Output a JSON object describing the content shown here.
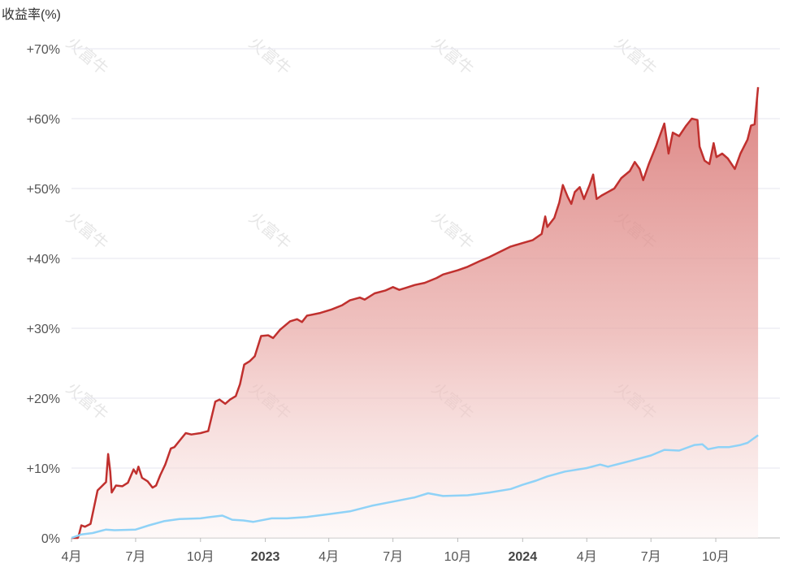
{
  "chart_data": {
    "type": "area",
    "ylabel": "收益率(%)",
    "ylim": [
      0,
      70
    ],
    "yticks": [
      {
        "value": 0,
        "label": "0%"
      },
      {
        "value": 10,
        "label": "+10%"
      },
      {
        "value": 20,
        "label": "+20%"
      },
      {
        "value": 30,
        "label": "+30%"
      },
      {
        "value": 40,
        "label": "+40%"
      },
      {
        "value": 50,
        "label": "+50%"
      },
      {
        "value": 60,
        "label": "+60%"
      },
      {
        "value": 70,
        "label": "+70%"
      }
    ],
    "xlim": [
      "2022-04-01",
      "2024-12-31"
    ],
    "xticks": [
      {
        "date": "2022-04-01",
        "label": "4月",
        "bold": false
      },
      {
        "date": "2022-07-01",
        "label": "7月",
        "bold": false
      },
      {
        "date": "2022-10-01",
        "label": "10月",
        "bold": false
      },
      {
        "date": "2023-01-01",
        "label": "2023",
        "bold": true
      },
      {
        "date": "2023-04-01",
        "label": "4月",
        "bold": false
      },
      {
        "date": "2023-07-01",
        "label": "7月",
        "bold": false
      },
      {
        "date": "2023-10-01",
        "label": "10月",
        "bold": false
      },
      {
        "date": "2024-01-01",
        "label": "2024",
        "bold": true
      },
      {
        "date": "2024-04-01",
        "label": "4月",
        "bold": false
      },
      {
        "date": "2024-07-01",
        "label": "7月",
        "bold": false
      },
      {
        "date": "2024-10-01",
        "label": "10月",
        "bold": false
      }
    ],
    "grid": true,
    "series": [
      {
        "color": "#c0302e",
        "fill": "gradient",
        "points": [
          [
            "2022-04-01",
            0
          ],
          [
            "2022-04-10",
            0
          ],
          [
            "2022-04-12",
            0.6
          ],
          [
            "2022-04-15",
            1.8
          ],
          [
            "2022-04-20",
            1.6
          ],
          [
            "2022-04-28",
            2.0
          ],
          [
            "2022-05-08",
            6.8
          ],
          [
            "2022-05-15",
            7.5
          ],
          [
            "2022-05-20",
            8.0
          ],
          [
            "2022-05-23",
            12.0
          ],
          [
            "2022-05-26",
            9.5
          ],
          [
            "2022-05-28",
            6.5
          ],
          [
            "2022-06-03",
            7.5
          ],
          [
            "2022-06-12",
            7.4
          ],
          [
            "2022-06-20",
            7.9
          ],
          [
            "2022-06-28",
            9.8
          ],
          [
            "2022-07-02",
            9.2
          ],
          [
            "2022-07-05",
            10.2
          ],
          [
            "2022-07-10",
            8.6
          ],
          [
            "2022-07-18",
            8.1
          ],
          [
            "2022-07-25",
            7.2
          ],
          [
            "2022-07-30",
            7.5
          ],
          [
            "2022-08-05",
            9.0
          ],
          [
            "2022-08-12",
            10.5
          ],
          [
            "2022-08-20",
            12.8
          ],
          [
            "2022-08-25",
            13.0
          ],
          [
            "2022-09-02",
            14.0
          ],
          [
            "2022-09-10",
            15.0
          ],
          [
            "2022-09-18",
            14.8
          ],
          [
            "2022-10-01",
            15.0
          ],
          [
            "2022-10-12",
            15.3
          ],
          [
            "2022-10-22",
            19.5
          ],
          [
            "2022-10-28",
            19.8
          ],
          [
            "2022-11-05",
            19.2
          ],
          [
            "2022-11-12",
            19.8
          ],
          [
            "2022-11-20",
            20.3
          ],
          [
            "2022-11-26",
            22.0
          ],
          [
            "2022-12-02",
            24.8
          ],
          [
            "2022-12-10",
            25.3
          ],
          [
            "2022-12-17",
            26.0
          ],
          [
            "2022-12-26",
            28.9
          ],
          [
            "2023-01-05",
            29.0
          ],
          [
            "2023-01-12",
            28.6
          ],
          [
            "2023-01-22",
            29.8
          ],
          [
            "2023-02-05",
            31.0
          ],
          [
            "2023-02-15",
            31.3
          ],
          [
            "2023-02-22",
            30.9
          ],
          [
            "2023-03-01",
            31.8
          ],
          [
            "2023-03-20",
            32.2
          ],
          [
            "2023-04-05",
            32.7
          ],
          [
            "2023-04-20",
            33.3
          ],
          [
            "2023-05-01",
            34.0
          ],
          [
            "2023-05-15",
            34.4
          ],
          [
            "2023-05-22",
            34.1
          ],
          [
            "2023-06-05",
            35.0
          ],
          [
            "2023-06-20",
            35.4
          ],
          [
            "2023-07-01",
            35.9
          ],
          [
            "2023-07-10",
            35.5
          ],
          [
            "2023-07-20",
            35.8
          ],
          [
            "2023-08-01",
            36.2
          ],
          [
            "2023-08-15",
            36.5
          ],
          [
            "2023-09-01",
            37.2
          ],
          [
            "2023-09-10",
            37.7
          ],
          [
            "2023-10-01",
            38.3
          ],
          [
            "2023-10-15",
            38.8
          ],
          [
            "2023-11-01",
            39.6
          ],
          [
            "2023-11-15",
            40.2
          ],
          [
            "2023-12-01",
            41.0
          ],
          [
            "2023-12-15",
            41.7
          ],
          [
            "2024-01-01",
            42.2
          ],
          [
            "2024-01-15",
            42.6
          ],
          [
            "2024-01-28",
            43.5
          ],
          [
            "2024-02-02",
            46.0
          ],
          [
            "2024-02-05",
            44.5
          ],
          [
            "2024-02-15",
            45.8
          ],
          [
            "2024-02-22",
            48.0
          ],
          [
            "2024-02-27",
            50.5
          ],
          [
            "2024-03-05",
            48.8
          ],
          [
            "2024-03-10",
            47.8
          ],
          [
            "2024-03-15",
            49.5
          ],
          [
            "2024-03-22",
            50.2
          ],
          [
            "2024-03-28",
            48.5
          ],
          [
            "2024-04-05",
            50.5
          ],
          [
            "2024-04-10",
            52.0
          ],
          [
            "2024-04-15",
            48.5
          ],
          [
            "2024-04-22",
            49.0
          ],
          [
            "2024-05-01",
            49.5
          ],
          [
            "2024-05-10",
            50.0
          ],
          [
            "2024-05-20",
            51.5
          ],
          [
            "2024-06-01",
            52.5
          ],
          [
            "2024-06-08",
            53.8
          ],
          [
            "2024-06-15",
            52.8
          ],
          [
            "2024-06-20",
            51.2
          ],
          [
            "2024-06-28",
            53.5
          ],
          [
            "2024-07-08",
            56.0
          ],
          [
            "2024-07-20",
            59.3
          ],
          [
            "2024-07-26",
            55.0
          ],
          [
            "2024-08-01",
            58.0
          ],
          [
            "2024-08-10",
            57.5
          ],
          [
            "2024-08-20",
            59.0
          ],
          [
            "2024-08-28",
            60.0
          ],
          [
            "2024-09-05",
            59.8
          ],
          [
            "2024-09-08",
            56.0
          ],
          [
            "2024-09-15",
            54.0
          ],
          [
            "2024-09-22",
            53.5
          ],
          [
            "2024-09-28",
            56.5
          ],
          [
            "2024-10-02",
            54.5
          ],
          [
            "2024-10-10",
            55.0
          ],
          [
            "2024-10-18",
            54.3
          ],
          [
            "2024-10-28",
            52.8
          ],
          [
            "2024-11-05",
            55.0
          ],
          [
            "2024-11-15",
            57.0
          ],
          [
            "2024-11-20",
            59.0
          ],
          [
            "2024-11-25",
            59.2
          ],
          [
            "2024-11-30",
            64.5
          ]
        ]
      },
      {
        "color": "#8fd2f7",
        "fill": "none",
        "points": [
          [
            "2022-04-01",
            0
          ],
          [
            "2022-04-15",
            0.5
          ],
          [
            "2022-05-01",
            0.7
          ],
          [
            "2022-05-20",
            1.2
          ],
          [
            "2022-06-01",
            1.1
          ],
          [
            "2022-07-01",
            1.2
          ],
          [
            "2022-07-20",
            1.8
          ],
          [
            "2022-08-10",
            2.4
          ],
          [
            "2022-09-01",
            2.7
          ],
          [
            "2022-10-01",
            2.8
          ],
          [
            "2022-10-15",
            3.0
          ],
          [
            "2022-11-01",
            3.2
          ],
          [
            "2022-11-15",
            2.6
          ],
          [
            "2022-12-01",
            2.5
          ],
          [
            "2022-12-15",
            2.3
          ],
          [
            "2023-01-10",
            2.8
          ],
          [
            "2023-02-01",
            2.8
          ],
          [
            "2023-03-01",
            3.0
          ],
          [
            "2023-04-01",
            3.4
          ],
          [
            "2023-05-01",
            3.8
          ],
          [
            "2023-06-01",
            4.6
          ],
          [
            "2023-07-01",
            5.2
          ],
          [
            "2023-08-01",
            5.8
          ],
          [
            "2023-08-20",
            6.4
          ],
          [
            "2023-09-10",
            6.0
          ],
          [
            "2023-10-15",
            6.1
          ],
          [
            "2023-11-15",
            6.5
          ],
          [
            "2023-12-15",
            7.0
          ],
          [
            "2024-01-01",
            7.6
          ],
          [
            "2024-01-20",
            8.2
          ],
          [
            "2024-02-05",
            8.8
          ],
          [
            "2024-03-01",
            9.5
          ],
          [
            "2024-04-01",
            10.0
          ],
          [
            "2024-04-20",
            10.5
          ],
          [
            "2024-05-01",
            10.2
          ],
          [
            "2024-06-01",
            11.0
          ],
          [
            "2024-07-01",
            11.8
          ],
          [
            "2024-07-20",
            12.6
          ],
          [
            "2024-08-10",
            12.5
          ],
          [
            "2024-09-01",
            13.3
          ],
          [
            "2024-09-12",
            13.4
          ],
          [
            "2024-09-20",
            12.7
          ],
          [
            "2024-10-05",
            13.0
          ],
          [
            "2024-10-20",
            13.0
          ],
          [
            "2024-11-05",
            13.3
          ],
          [
            "2024-11-15",
            13.6
          ],
          [
            "2024-11-30",
            14.7
          ]
        ]
      }
    ],
    "watermark": "火富牛"
  }
}
